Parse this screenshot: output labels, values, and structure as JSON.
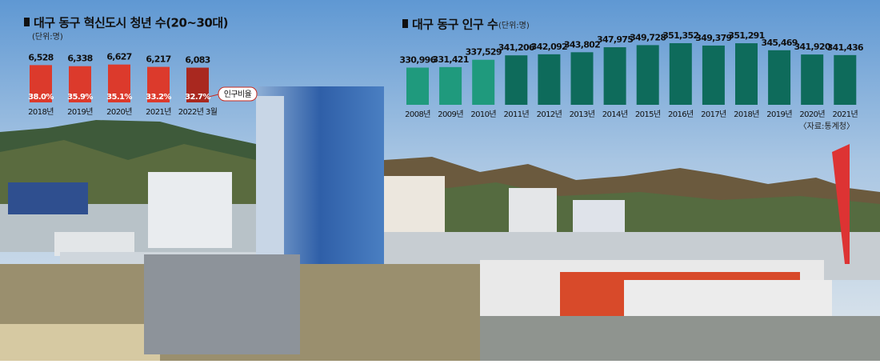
{
  "chart_data": [
    {
      "type": "bar",
      "title": "대구 동구 혁신도시 청년 수(20~30대)",
      "subtitle": "(단위:명)",
      "categories": [
        "2018년",
        "2019년",
        "2020년",
        "2021년",
        "2022년 3월"
      ],
      "values": [
        6528,
        6338,
        6627,
        6217,
        6083
      ],
      "value_labels": [
        "6,528",
        "6,338",
        "6,627",
        "6,217",
        "6,083"
      ],
      "colors": [
        "#dc3a2c",
        "#dc3a2c",
        "#dc3a2c",
        "#dc3a2c",
        "#a9281f"
      ],
      "ylim": [
        0,
        7000
      ],
      "ratio": {
        "name": "인구비율",
        "values": [
          38.0,
          35.9,
          35.1,
          33.2,
          32.7
        ],
        "value_labels": [
          "38.0%",
          "35.9%",
          "35.1%",
          "33.2%",
          "32.7%"
        ]
      }
    },
    {
      "type": "bar",
      "title": "대구 동구 인구 수",
      "subtitle": "(단위:명)",
      "source": "〈자료:통계청〉",
      "categories": [
        "2008년",
        "2009년",
        "2010년",
        "2011년",
        "2012년",
        "2013년",
        "2014년",
        "2015년",
        "2016년",
        "2017년",
        "2018년",
        "2019년",
        "2020년",
        "2021년"
      ],
      "values": [
        330996,
        331421,
        337529,
        341206,
        342092,
        343802,
        347975,
        349728,
        351352,
        349379,
        351291,
        345469,
        341920,
        341436
      ],
      "value_labels": [
        "330,996",
        "331,421",
        "337,529",
        "341,206",
        "342,092",
        "343,802",
        "347,975",
        "349,728",
        "351,352",
        "349,379",
        "351,291",
        "345,469",
        "341,920",
        "341,436"
      ],
      "colors": [
        "#1f9a7d",
        "#1f9a7d",
        "#1f9a7d",
        "#0e6b5b",
        "#0e6b5b",
        "#0e6b5b",
        "#0e6b5b",
        "#0e6b5b",
        "#0e6b5b",
        "#0e6b5b",
        "#0e6b5b",
        "#0e6b5b",
        "#0e6b5b",
        "#0e6b5b"
      ],
      "ylim": [
        300000,
        355000
      ]
    }
  ]
}
